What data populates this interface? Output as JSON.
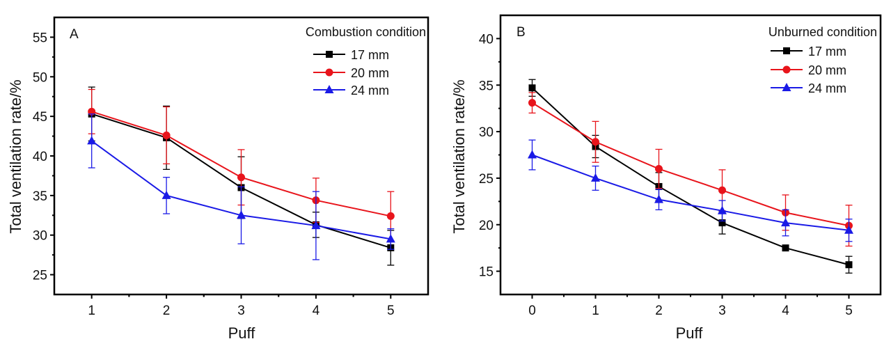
{
  "chart_data": [
    {
      "type": "line",
      "panel_label": "A",
      "legend_title": "Combustion condition",
      "legend_position": "top-right",
      "xlabel": "Puff",
      "ylabel": "Total ventilation rate/%",
      "xlim": [
        0.5,
        5.5
      ],
      "ylim": [
        22.5,
        57.5
      ],
      "xticks": [
        1,
        2,
        3,
        4,
        5
      ],
      "yticks": [
        25,
        30,
        35,
        40,
        45,
        50,
        55
      ],
      "grid": false,
      "x": [
        1,
        2,
        3,
        4,
        5
      ],
      "series": [
        {
          "name": "17 mm",
          "color": "#000000",
          "marker": "square",
          "values": [
            45.3,
            42.3,
            36.0,
            31.3,
            28.4
          ],
          "errors": [
            3.4,
            4.0,
            3.9,
            1.6,
            2.2
          ]
        },
        {
          "name": "20 mm",
          "color": "#e8141b",
          "marker": "circle",
          "values": [
            45.6,
            42.6,
            37.3,
            34.4,
            32.4
          ],
          "errors": [
            2.8,
            3.6,
            3.5,
            2.8,
            3.1
          ]
        },
        {
          "name": "24 mm",
          "color": "#1a1ae6",
          "marker": "triangle",
          "values": [
            41.9,
            35.0,
            32.5,
            31.2,
            29.5
          ],
          "errors": [
            3.4,
            2.3,
            3.6,
            4.3,
            1.3
          ]
        }
      ]
    },
    {
      "type": "line",
      "panel_label": "B",
      "legend_title": "Unburned condition",
      "legend_position": "top-right",
      "xlabel": "Puff",
      "ylabel": "Total ventilation rate/%",
      "xlim": [
        -0.5,
        5.5
      ],
      "ylim": [
        12.5,
        42.5
      ],
      "xticks": [
        0,
        1,
        2,
        3,
        4,
        5
      ],
      "yticks": [
        15,
        20,
        25,
        30,
        35,
        40
      ],
      "grid": false,
      "x": [
        0,
        1,
        2,
        3,
        4,
        5
      ],
      "series": [
        {
          "name": "17 mm",
          "color": "#000000",
          "marker": "square",
          "values": [
            34.7,
            28.4,
            24.1,
            20.2,
            17.5,
            15.7
          ],
          "errors": [
            0.9,
            1.2,
            1.5,
            1.2,
            0.3,
            0.9
          ]
        },
        {
          "name": "20 mm",
          "color": "#e8141b",
          "marker": "circle",
          "values": [
            33.1,
            28.9,
            26.0,
            23.7,
            21.3,
            19.9
          ],
          "errors": [
            1.1,
            2.2,
            2.1,
            2.2,
            1.9,
            2.2
          ]
        },
        {
          "name": "24 mm",
          "color": "#1a1ae6",
          "marker": "triangle",
          "values": [
            27.5,
            25.0,
            22.7,
            21.5,
            20.2,
            19.4
          ],
          "errors": [
            1.6,
            1.3,
            1.1,
            1.1,
            1.4,
            1.2
          ]
        }
      ]
    }
  ]
}
